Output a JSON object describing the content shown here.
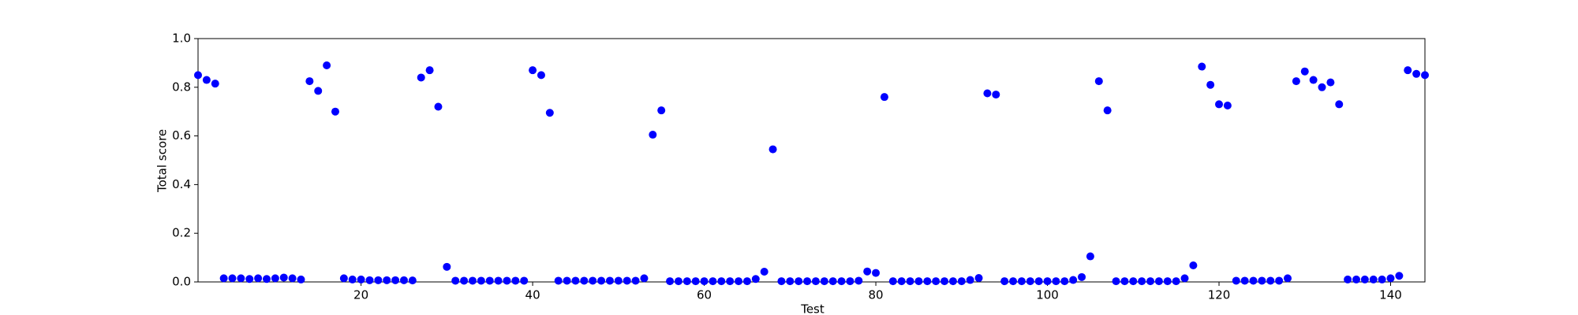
{
  "chart_data": {
    "type": "scatter",
    "xlabel": "Test",
    "ylabel": "Total score",
    "color": "#0000ff",
    "x": [
      1,
      2,
      3,
      4,
      5,
      6,
      7,
      8,
      9,
      10,
      11,
      12,
      13,
      14,
      15,
      16,
      17,
      18,
      19,
      20,
      21,
      22,
      23,
      24,
      25,
      26,
      27,
      28,
      29,
      30,
      31,
      32,
      33,
      34,
      35,
      36,
      37,
      38,
      39,
      40,
      41,
      42,
      43,
      44,
      45,
      46,
      47,
      48,
      49,
      50,
      51,
      52,
      53,
      54,
      55,
      56,
      57,
      58,
      59,
      60,
      61,
      62,
      63,
      64,
      65,
      66,
      67,
      68,
      69,
      70,
      71,
      72,
      73,
      74,
      75,
      76,
      77,
      78,
      79,
      80,
      81,
      82,
      83,
      84,
      85,
      86,
      87,
      88,
      89,
      90,
      91,
      92,
      93,
      94,
      95,
      96,
      97,
      98,
      99,
      100,
      101,
      102,
      103,
      104,
      105,
      106,
      107,
      108,
      109,
      110,
      111,
      112,
      113,
      114,
      115,
      116,
      117,
      118,
      119,
      120,
      121,
      122,
      123,
      124,
      125,
      126,
      127,
      128,
      129,
      130,
      131,
      132,
      133,
      134,
      135,
      136,
      137,
      138,
      139,
      140,
      141,
      142,
      143,
      144
    ],
    "values": [
      0.85,
      0.83,
      0.815,
      0.015,
      0.015,
      0.015,
      0.012,
      0.015,
      0.012,
      0.015,
      0.018,
      0.015,
      0.01,
      0.825,
      0.785,
      0.89,
      0.7,
      0.015,
      0.01,
      0.01,
      0.007,
      0.007,
      0.007,
      0.007,
      0.007,
      0.006,
      0.84,
      0.87,
      0.72,
      0.062,
      0.005,
      0.005,
      0.005,
      0.005,
      0.005,
      0.005,
      0.005,
      0.005,
      0.005,
      0.87,
      0.85,
      0.695,
      0.005,
      0.005,
      0.005,
      0.005,
      0.005,
      0.005,
      0.005,
      0.005,
      0.005,
      0.005,
      0.015,
      0.605,
      0.705,
      0.003,
      0.003,
      0.003,
      0.003,
      0.003,
      0.003,
      0.003,
      0.003,
      0.003,
      0.003,
      0.012,
      0.042,
      0.545,
      0.003,
      0.003,
      0.003,
      0.003,
      0.003,
      0.003,
      0.003,
      0.003,
      0.003,
      0.005,
      0.043,
      0.037,
      0.76,
      0.003,
      0.003,
      0.003,
      0.003,
      0.003,
      0.003,
      0.003,
      0.003,
      0.003,
      0.008,
      0.016,
      0.775,
      0.77,
      0.003,
      0.003,
      0.003,
      0.003,
      0.003,
      0.003,
      0.003,
      0.003,
      0.008,
      0.02,
      0.105,
      0.825,
      0.705,
      0.003,
      0.003,
      0.003,
      0.003,
      0.003,
      0.003,
      0.003,
      0.003,
      0.015,
      0.068,
      0.885,
      0.81,
      0.73,
      0.725,
      0.005,
      0.005,
      0.005,
      0.005,
      0.005,
      0.005,
      0.015,
      0.825,
      0.865,
      0.83,
      0.8,
      0.82,
      0.73,
      0.01,
      0.01,
      0.01,
      0.01,
      0.01,
      0.015,
      0.025,
      0.87,
      0.855,
      0.85
    ],
    "xlim": [
      1,
      144
    ],
    "xticks": [
      20,
      40,
      60,
      80,
      100,
      120,
      140
    ],
    "ylim": [
      0,
      1
    ],
    "yticks": [
      {
        "value": 0,
        "label": "0.0"
      },
      0.2,
      0.4,
      0.6,
      0.8,
      {
        "value": 1,
        "label": "1.0"
      }
    ]
  }
}
